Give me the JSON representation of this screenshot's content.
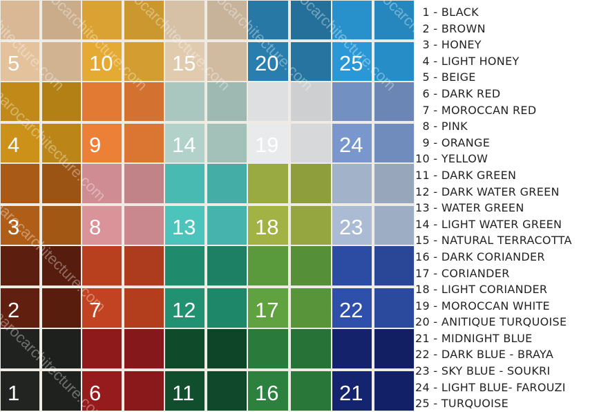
{
  "watermark": "marocarchitecture.com",
  "tiles": [
    {
      "n": "1",
      "name": "BLACK",
      "color": "#1f221f"
    },
    {
      "n": "2",
      "name": "BROWN",
      "color": "#5c1e0e"
    },
    {
      "n": "3",
      "name": "HONEY",
      "color": "#a85a16"
    },
    {
      "n": "4",
      "name": "LIGHT HONEY",
      "color": "#c18a18"
    },
    {
      "n": "5",
      "name": "BEIGE",
      "color": "#d9b995"
    },
    {
      "n": "6",
      "name": "DARK RED",
      "color": "#8e1a1c"
    },
    {
      "n": "7",
      "name": "MOROCCAN RED",
      "color": "#b9401f"
    },
    {
      "n": "8",
      "name": "PINK",
      "color": "#cf8c92"
    },
    {
      "n": "9",
      "name": "ORANGE",
      "color": "#e27a34"
    },
    {
      "n": "10",
      "name": "YELLOW",
      "color": "#daa232"
    },
    {
      "n": "11",
      "name": "DARK GREEN",
      "color": "#0f4a2b"
    },
    {
      "n": "12",
      "name": "DARK WATER GREEN",
      "color": "#1f8a6c"
    },
    {
      "n": "13",
      "name": "WATER GREEN",
      "color": "#48bab2"
    },
    {
      "n": "14",
      "name": "LIGHT WATER GREEN",
      "color": "#a9c7bf"
    },
    {
      "n": "15",
      "name": "NATURAL TERRACOTTA",
      "color": "#d6c1a6"
    },
    {
      "n": "16",
      "name": "DARK CORIANDER",
      "color": "#2a7b3b"
    },
    {
      "n": "17",
      "name": "CORIANDER",
      "color": "#5b9a3c"
    },
    {
      "n": "18",
      "name": "LIGHT CORIANDER",
      "color": "#9aaa42"
    },
    {
      "n": "19",
      "name": "MOROCCAN WHITE",
      "color": "#dedfe0"
    },
    {
      "n": "20",
      "name": "ANITIQUE TURQUOISE",
      "color": "#2878a6"
    },
    {
      "n": "21",
      "name": "MIDNIGHT BLUE",
      "color": "#13226a"
    },
    {
      "n": "22",
      "name": "DARK BLUE - BRAYA",
      "color": "#2c4ba2"
    },
    {
      "n": "23",
      "name": "SKY BLUE - SOUKRI",
      "color": "#a2b2c9"
    },
    {
      "n": "24",
      "name": "LIGHT BLUE- FAROUZI",
      "color": "#7390c2"
    },
    {
      "n": "25",
      "name": "TURQUOISE",
      "color": "#2891cc"
    }
  ]
}
